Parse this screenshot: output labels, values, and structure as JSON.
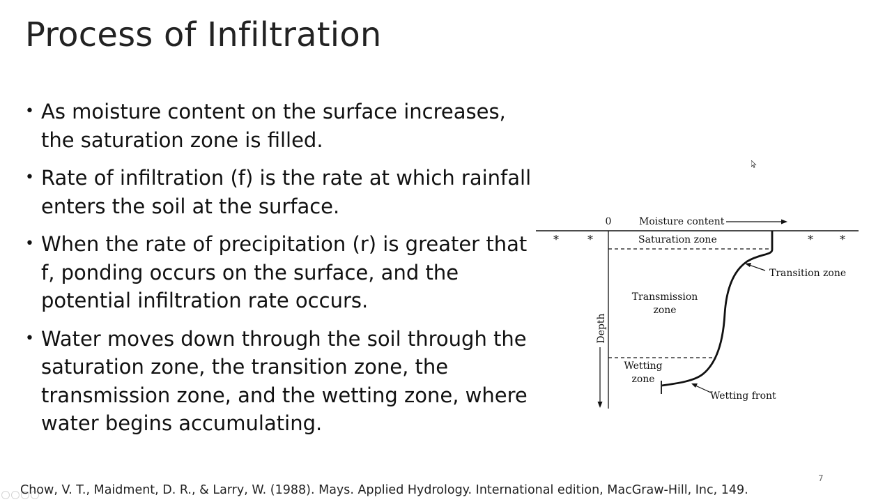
{
  "slide": {
    "title": "Process of Infiltration",
    "bullets": [
      "As moisture content on the surface increases, the saturation zone is filled.",
      "Rate of infiltration (f) is the rate at which rainfall enters the soil at the surface.",
      "When the rate of precipitation (r) is greater that f, ponding occurs on the surface, and the potential infiltration rate occurs.",
      "Water moves down through the soil through the saturation zone, the transition zone, the transmission zone, and the wetting zone, where water begins accumulating."
    ],
    "bullet_glyph": "•",
    "citation": "Chow, V. T., Maidment, D. R., & Larry, W. (1988). Mays. Applied Hydrology. International edition, MacGraw-Hill, Inc, 149.",
    "page_number": "7"
  },
  "diagram": {
    "origin_label": "0",
    "moisture_label": "Moisture content",
    "depth_label": "Depth",
    "saturation_zone": "Saturation zone",
    "transition_zone": "Transition zone",
    "transmission_zone_line1": "Transmission",
    "transmission_zone_line2": "zone",
    "wetting_zone_line1": "Wetting",
    "wetting_zone_line2": "zone",
    "wetting_front": "Wetting front",
    "surface_glyph": "*"
  },
  "colors": {
    "text": "#111111",
    "background": "#ffffff"
  }
}
